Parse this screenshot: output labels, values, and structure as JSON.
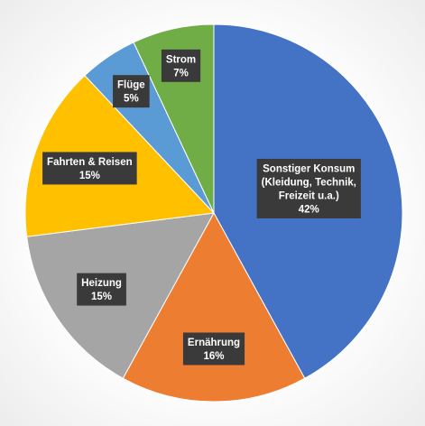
{
  "chart_data": {
    "type": "pie",
    "title": "",
    "slices": [
      {
        "label": [
          "Sonstiger Konsum",
          "(Kleidung, Technik,",
          "Freizeit u.a.)"
        ],
        "value": 42,
        "value_label": "42%",
        "color": "#4472C4"
      },
      {
        "label": [
          "Ernährung"
        ],
        "value": 16,
        "value_label": "16%",
        "color": "#ED7D31"
      },
      {
        "label": [
          "Heizung"
        ],
        "value": 15,
        "value_label": "15%",
        "color": "#A5A5A5"
      },
      {
        "label": [
          "Fahrten & Reisen"
        ],
        "value": 15,
        "value_label": "15%",
        "color": "#FFC000"
      },
      {
        "label": [
          "Flüge"
        ],
        "value": 5,
        "value_label": "5%",
        "color": "#5B9BD5"
      },
      {
        "label": [
          "Strom"
        ],
        "value": 7,
        "value_label": "7%",
        "color": "#70AD47"
      }
    ],
    "start_angle": "12 o'clock",
    "direction": "clockwise",
    "legend": "none",
    "data_labels": "inside, dark boxes"
  }
}
